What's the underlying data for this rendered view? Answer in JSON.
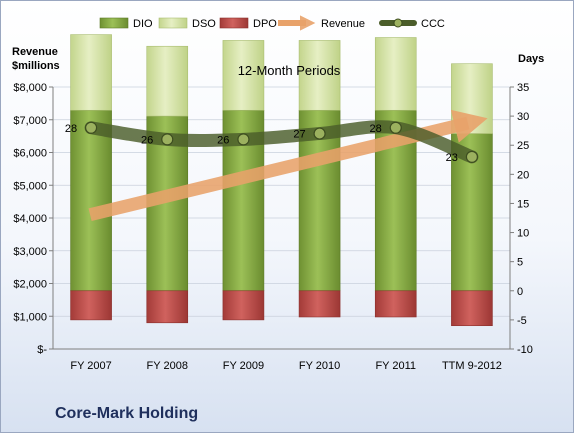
{
  "chart_data": {
    "type": "bar",
    "title": "12-Month Periods",
    "y_left_label": [
      "Revenue",
      "$millions"
    ],
    "y_right_label": "Days",
    "categories": [
      "FY 2007",
      "FY 2008",
      "FY 2009",
      "FY 2010",
      "FY 2011",
      "TTM 9-2012"
    ],
    "y_left_ticks": [
      "$-",
      "$1,000",
      "$2,000",
      "$3,000",
      "$4,000",
      "$5,000",
      "$6,000",
      "$7,000",
      "$8,000"
    ],
    "y_left_lim": [
      0,
      8000
    ],
    "y_right_ticks": [
      "-10",
      "-5",
      "0",
      "5",
      "10",
      "15",
      "20",
      "25",
      "30",
      "35"
    ],
    "y_right_lim": [
      -10,
      35
    ],
    "legend": [
      "DIO",
      "DSO",
      "DPO",
      "Revenue",
      "CCC"
    ],
    "legend_position": "top",
    "series": [
      {
        "name": "DIO",
        "type": "bar",
        "axis": "right",
        "values": [
          31,
          30,
          31,
          31,
          31,
          27
        ],
        "color": "#8fb24a"
      },
      {
        "name": "DSO",
        "type": "bar",
        "axis": "right",
        "values": [
          13,
          12,
          12,
          12,
          12.5,
          12
        ],
        "color": "#d7e4a8"
      },
      {
        "name": "DPO",
        "type": "bar",
        "axis": "right",
        "values": [
          -5,
          -5.5,
          -5,
          -4.5,
          -4.5,
          -6
        ],
        "color": "#c0504d"
      },
      {
        "name": "Revenue",
        "type": "line",
        "axis": "left",
        "values": [
          4100,
          4550,
          5000,
          5400,
          6100,
          6900
        ],
        "color": "#e8a26a"
      },
      {
        "name": "CCC",
        "type": "line",
        "axis": "right",
        "values": [
          28,
          26,
          26,
          27,
          28,
          23
        ],
        "color": "#4b5d2a"
      }
    ],
    "ccc_labels": [
      "28",
      "26",
      "26",
      "27",
      "28",
      "23"
    ]
  },
  "footer": {
    "company": "Core-Mark Holding"
  }
}
